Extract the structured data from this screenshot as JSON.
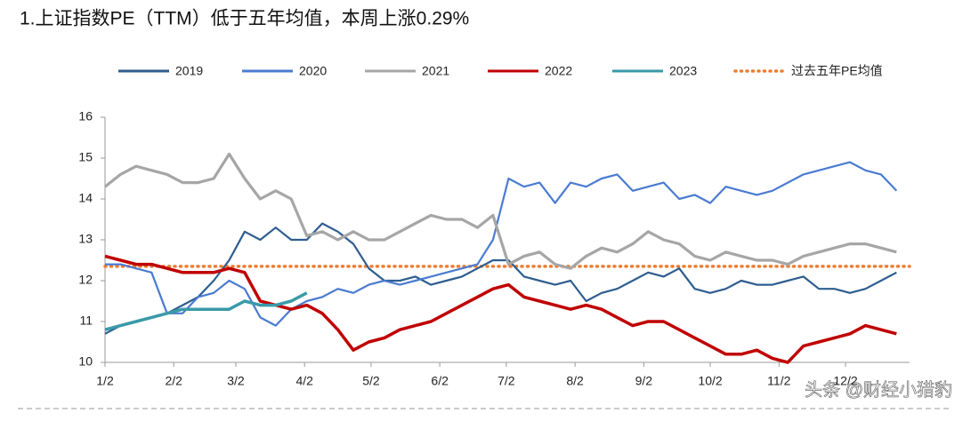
{
  "chart_data": {
    "type": "line",
    "title": "1.上证指数PE（TTM）低于五年均值，本周上涨0.29%",
    "x": [
      0,
      7,
      14,
      21,
      28,
      35,
      42,
      49,
      56,
      63,
      70,
      77,
      84,
      91,
      98,
      105,
      112,
      119,
      126,
      133,
      140,
      147,
      154,
      161,
      168,
      175,
      182,
      189,
      196,
      203,
      210,
      217,
      224,
      231,
      238,
      245,
      252,
      259,
      266,
      273,
      280,
      287,
      294,
      301,
      308,
      315,
      322,
      329,
      336,
      343,
      350,
      357
    ],
    "xlim": [
      0,
      363
    ],
    "xticks": [
      {
        "value": 0,
        "label": "1/2"
      },
      {
        "value": 31,
        "label": "2/2"
      },
      {
        "value": 59,
        "label": "3/2"
      },
      {
        "value": 90,
        "label": "4/2"
      },
      {
        "value": 120,
        "label": "5/2"
      },
      {
        "value": 151,
        "label": "6/2"
      },
      {
        "value": 181,
        "label": "7/2"
      },
      {
        "value": 212,
        "label": "8/2"
      },
      {
        "value": 243,
        "label": "9/2"
      },
      {
        "value": 273,
        "label": "10/2"
      },
      {
        "value": 304,
        "label": "11/2"
      },
      {
        "value": 334,
        "label": "12/2"
      }
    ],
    "ylim": [
      10,
      16
    ],
    "yticks": [
      10,
      11,
      12,
      13,
      14,
      15,
      16
    ],
    "series": [
      {
        "name": "2019",
        "color": "#2e5d8f",
        "width": 2.2,
        "values": [
          10.7,
          10.9,
          11.0,
          11.1,
          11.2,
          11.4,
          11.6,
          12.0,
          12.5,
          13.2,
          13.0,
          13.3,
          13.0,
          13.0,
          13.4,
          13.2,
          12.9,
          12.3,
          12.0,
          12.0,
          12.1,
          11.9,
          12.0,
          12.1,
          12.3,
          12.5,
          12.5,
          12.1,
          12.0,
          11.9,
          12.0,
          11.5,
          11.7,
          11.8,
          12.0,
          12.2,
          12.1,
          12.3,
          11.8,
          11.7,
          11.8,
          12.0,
          11.9,
          11.9,
          12.0,
          12.1,
          11.8,
          11.8,
          11.7,
          11.8,
          12.0,
          12.2
        ]
      },
      {
        "name": "2020",
        "color": "#4a7bd0",
        "width": 2.2,
        "values": [
          12.4,
          12.4,
          12.3,
          12.2,
          11.2,
          11.2,
          11.6,
          11.7,
          12.0,
          11.8,
          11.1,
          10.9,
          11.3,
          11.5,
          11.6,
          11.8,
          11.7,
          11.9,
          12.0,
          11.9,
          12.0,
          12.1,
          12.2,
          12.3,
          12.4,
          13.0,
          14.5,
          14.3,
          14.4,
          13.9,
          14.4,
          14.3,
          14.5,
          14.6,
          14.2,
          14.3,
          14.4,
          14.0,
          14.1,
          13.9,
          14.3,
          14.2,
          14.1,
          14.2,
          14.4,
          14.6,
          14.7,
          14.8,
          14.9,
          14.7,
          14.6,
          14.2
        ]
      },
      {
        "name": "2021",
        "color": "#a6a6a6",
        "width": 3.2,
        "values": [
          14.3,
          14.6,
          14.8,
          14.7,
          14.6,
          14.4,
          14.4,
          14.5,
          15.1,
          14.5,
          14.0,
          14.2,
          14.0,
          13.1,
          13.2,
          13.0,
          13.2,
          13.0,
          13.0,
          13.2,
          13.4,
          13.6,
          13.5,
          13.5,
          13.3,
          13.6,
          12.4,
          12.6,
          12.7,
          12.4,
          12.3,
          12.6,
          12.8,
          12.7,
          12.9,
          13.2,
          13.0,
          12.9,
          12.6,
          12.5,
          12.7,
          12.6,
          12.5,
          12.5,
          12.4,
          12.6,
          12.7,
          12.8,
          12.9,
          12.9,
          12.8,
          12.7
        ]
      },
      {
        "name": "2022",
        "color": "#c00000",
        "width": 3.5,
        "values": [
          12.6,
          12.5,
          12.4,
          12.4,
          12.3,
          12.2,
          12.2,
          12.2,
          12.3,
          12.2,
          11.5,
          11.4,
          11.3,
          11.4,
          11.2,
          10.8,
          10.3,
          10.5,
          10.6,
          10.8,
          10.9,
          11.0,
          11.2,
          11.4,
          11.6,
          11.8,
          11.9,
          11.6,
          11.5,
          11.4,
          11.3,
          11.4,
          11.3,
          11.1,
          10.9,
          11.0,
          11.0,
          10.8,
          10.6,
          10.4,
          10.2,
          10.2,
          10.3,
          10.1,
          10.0,
          10.4,
          10.5,
          10.6,
          10.7,
          10.9,
          10.8,
          10.7
        ]
      },
      {
        "name": "2023",
        "color": "#3a9aa8",
        "width": 3.5,
        "values": [
          10.8,
          10.9,
          11.0,
          11.1,
          11.2,
          11.3,
          11.3,
          11.3,
          11.3,
          11.5,
          11.4,
          11.4,
          11.5,
          11.7,
          null,
          null,
          null,
          null,
          null,
          null,
          null,
          null,
          null,
          null,
          null,
          null,
          null,
          null,
          null,
          null,
          null,
          null,
          null,
          null,
          null,
          null,
          null,
          null,
          null,
          null,
          null,
          null,
          null,
          null,
          null,
          null,
          null,
          null,
          null,
          null,
          null,
          null
        ]
      }
    ],
    "reference_line": {
      "name": "过去五年PE均值",
      "value": 12.35,
      "color": "#ed7d31"
    },
    "watermark": "头条 @财经小猎豹"
  }
}
